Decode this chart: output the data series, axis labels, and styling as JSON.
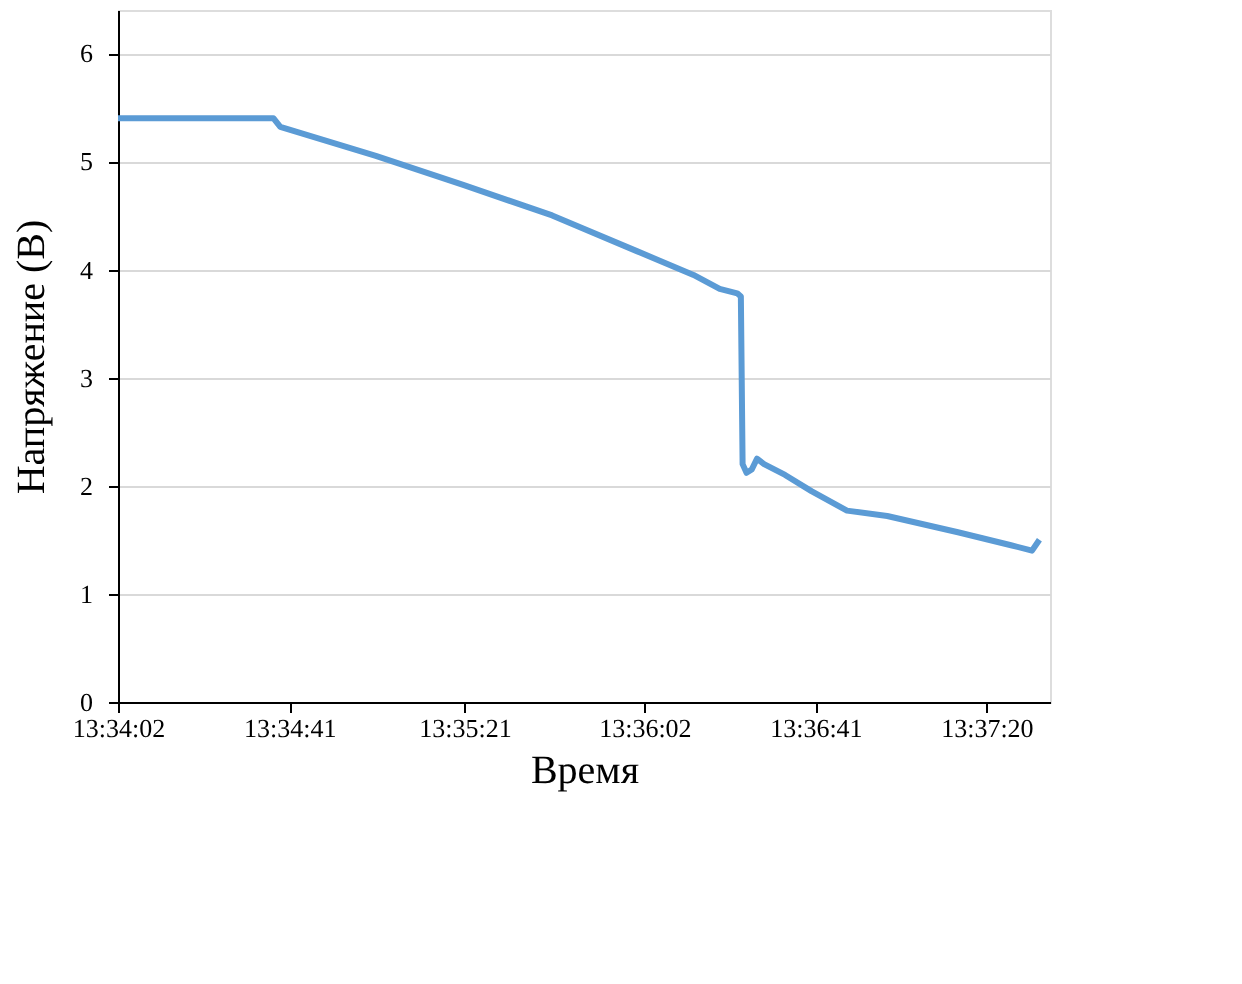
{
  "chart_data": {
    "type": "line",
    "xlabel": "Время",
    "ylabel": "Напряжение (В)",
    "x": [
      13.56722,
      13.57706,
      13.5775,
      13.58355,
      13.58913,
      13.59472,
      13.60008,
      13.60367,
      13.60533,
      13.60644,
      13.60667,
      13.60678,
      13.60703,
      13.60736,
      13.60769,
      13.60814,
      13.60947,
      13.61114,
      13.61339,
      13.61594,
      13.62042,
      13.62378,
      13.62511,
      13.62558
    ],
    "series": [
      {
        "color": "#5b9bd5",
        "values": [
          5.4,
          5.4,
          5.32,
          5.05,
          4.78,
          4.5,
          4.17,
          3.95,
          3.82,
          3.78,
          3.75,
          2.2,
          2.12,
          2.15,
          2.25,
          2.2,
          2.1,
          1.95,
          1.77,
          1.72,
          1.57,
          1.45,
          1.4,
          1.5
        ]
      }
    ],
    "xlim": [
      13.56722,
      13.62625
    ],
    "ylim": [
      0,
      6.4
    ],
    "xticks": [
      {
        "value": 13.56722,
        "label": "13:34:02"
      },
      {
        "value": 13.57806,
        "label": "13:34:41"
      },
      {
        "value": 13.58917,
        "label": "13:35:21"
      },
      {
        "value": 13.60056,
        "label": "13:36:02"
      },
      {
        "value": 13.61139,
        "label": "13:36:41"
      },
      {
        "value": 13.62222,
        "label": "13:37:20"
      }
    ],
    "yticks": [
      0,
      1,
      2,
      3,
      4,
      5,
      6
    ],
    "grid": "y",
    "marker": "none",
    "line_style": "solid"
  }
}
